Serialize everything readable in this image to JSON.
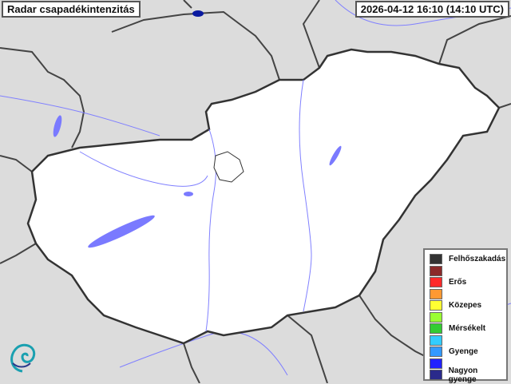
{
  "header": {
    "title": "Radar csapadékintenzitás",
    "timestamp": "2026-04-12 16:10 (14:10 UTC)"
  },
  "legend": {
    "items": [
      {
        "label": "Felhőszakadás",
        "color": "#333333"
      },
      {
        "label": "",
        "color": "#8b2a2a"
      },
      {
        "label": "Erős",
        "color": "#ff2a2a"
      },
      {
        "label": "",
        "color": "#ff9933"
      },
      {
        "label": "Közepes",
        "color": "#ffff33"
      },
      {
        "label": "",
        "color": "#99ff33"
      },
      {
        "label": "Mérsékelt",
        "color": "#33cc33"
      },
      {
        "label": "",
        "color": "#33ccff"
      },
      {
        "label": "Gyenge",
        "color": "#3399ff"
      },
      {
        "label": "",
        "color": "#2222ff"
      },
      {
        "label": "Nagyon gyenge",
        "color": "#2a2a8b"
      }
    ]
  },
  "map": {
    "background": "#dcdcdc",
    "country_fill": "#ffffff",
    "border_color": "#333333",
    "water_color": "#7a7aff",
    "echo_color": "#0a1aa0"
  }
}
